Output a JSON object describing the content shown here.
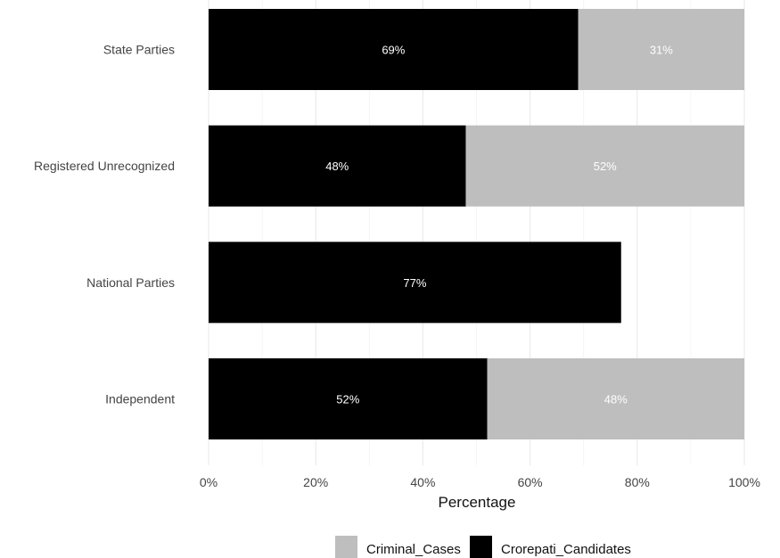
{
  "chart_data": {
    "type": "bar",
    "orientation": "horizontal",
    "stacked": true,
    "title": "",
    "xlabel": "Percentage",
    "ylabel": "",
    "xlim": [
      0,
      100
    ],
    "x_ticks": [
      "0%",
      "20%",
      "40%",
      "60%",
      "80%",
      "100%"
    ],
    "x_tick_values": [
      0,
      20,
      40,
      60,
      80,
      100
    ],
    "grid": true,
    "categories": [
      "State Parties",
      "Registered Unrecognized",
      "National Parties",
      "Independent"
    ],
    "series": [
      {
        "name": "Crorepati_Candidates",
        "color": "#000000",
        "label_color": "#ffffff",
        "values": [
          69,
          48,
          77,
          52
        ],
        "labels": [
          "69%",
          "48%",
          "77%",
          "52%"
        ]
      },
      {
        "name": "Criminal_Cases",
        "color": "#bebebe",
        "label_color": "#ffffff",
        "values": [
          31,
          52,
          0,
          48
        ],
        "labels": [
          "31%",
          "52%",
          "",
          "48%"
        ]
      }
    ],
    "legend": {
      "position": "bottom",
      "entries": [
        {
          "name": "Criminal_Cases",
          "color": "#bebebe"
        },
        {
          "name": "Crorepati_Candidates",
          "color": "#000000"
        }
      ]
    }
  }
}
